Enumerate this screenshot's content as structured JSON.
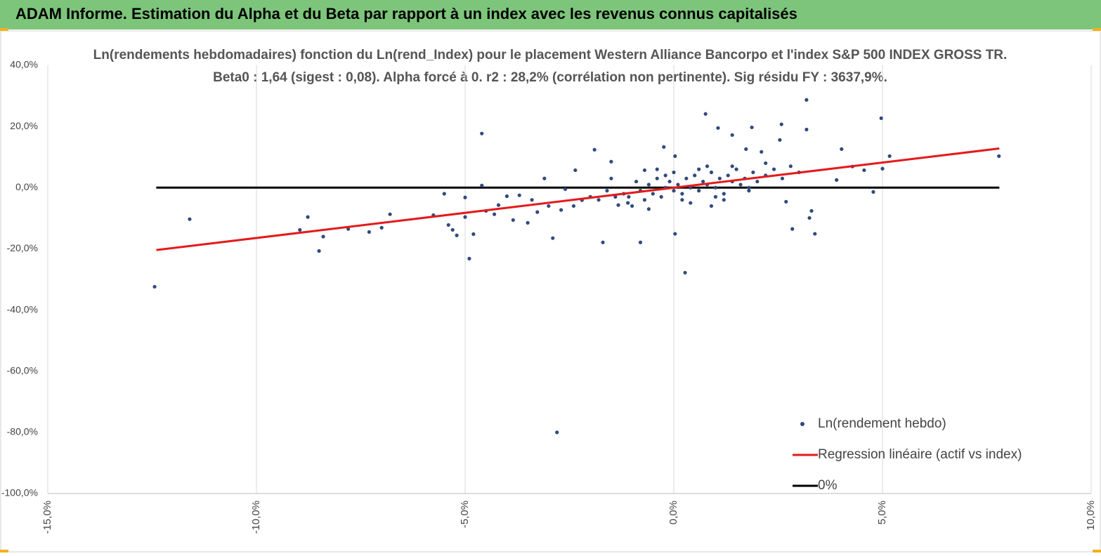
{
  "page_title": "ADAM Informe. Estimation du Alpha et du Beta par rapport à un index avec les revenus connus capitalisés",
  "chart_data": {
    "type": "scatter",
    "title": "Ln(rendements hebdomadaires) fonction du Ln(rend_Index) pour le placement Western Alliance Bancorpo et l'index S&P 500 INDEX GROSS TR.",
    "subtitle": "Beta0 : 1,64 (sigest : 0,08). Alpha forcé à 0. r2 : 28,2% (corrélation non pertinente). Sig résidu FY : 3637,9%.",
    "xlim": [
      -15,
      10
    ],
    "xticks": [
      {
        "value": -15,
        "label": "-15,0%"
      },
      {
        "value": -10,
        "label": "-10,0%"
      },
      {
        "value": -5,
        "label": "-5,0%"
      },
      {
        "value": 0,
        "label": "0,0%"
      },
      {
        "value": 5,
        "label": "5,0%"
      },
      {
        "value": 10,
        "label": "10,0%"
      }
    ],
    "ylim": [
      -100,
      40
    ],
    "yticks": [
      {
        "value": 40,
        "label": "40,0%"
      },
      {
        "value": 20,
        "label": "20,0%"
      },
      {
        "value": 0,
        "label": "0,0%"
      },
      {
        "value": -20,
        "label": "-20,0%"
      },
      {
        "value": -40,
        "label": "-40,0%"
      },
      {
        "value": -60,
        "label": "-60,0%"
      },
      {
        "value": -80,
        "label": "-80,0%"
      },
      {
        "value": -100,
        "label": "-100,0%"
      }
    ],
    "grid": "x",
    "legend": "bottom-right",
    "series": [
      {
        "name": "Ln(rendement hebdo)",
        "type": "scatter",
        "color": "#2f4b7c",
        "x": [
          -12.44,
          -11.6,
          -8.96,
          -8.77,
          -8.5,
          -8.4,
          -7.8,
          -7.3,
          -7.0,
          -6.8,
          -5.76,
          -5.5,
          -5.4,
          -5.3,
          -5.2,
          -5.0,
          -5.0,
          -4.9,
          -4.8,
          -4.6,
          -4.6,
          -4.5,
          -4.3,
          -4.2,
          -4.0,
          -3.85,
          -3.7,
          -3.5,
          -3.27,
          -3.1,
          -2.9,
          -2.8,
          -2.7,
          -2.6,
          -2.36,
          -2.2,
          -1.9,
          -1.7,
          -1.5,
          -1.33,
          -1.08,
          -0.8,
          -0.7,
          -0.24,
          0.03,
          0.03,
          0.27,
          0.76,
          1.06,
          1.4,
          1.87,
          1.73,
          2.58,
          2.54,
          2.1,
          2.84,
          2.69,
          3.18,
          3.18,
          3.3,
          3.38,
          3.25,
          4.02,
          3.9,
          4.28,
          4.78,
          4.97,
          5.17,
          7.79,
          4.56,
          5.0,
          -1.8,
          -1.6,
          -1.4,
          -1.2,
          -1.0,
          -0.9,
          -0.8,
          -0.7,
          -0.6,
          -0.5,
          -0.4,
          -0.3,
          -0.2,
          -0.1,
          0,
          0.1,
          0.2,
          0.3,
          0.4,
          0.5,
          0.6,
          0.7,
          0.8,
          0.9,
          1.0,
          1.1,
          1.2,
          1.3,
          1.4,
          1.5,
          1.6,
          1.7,
          1.8,
          1.9,
          2.0,
          2.2,
          2.4,
          2.6,
          2.8,
          3.0,
          -1.5,
          -1.1,
          -0.6,
          -0.2,
          0.2,
          0.6,
          1.0,
          1.4,
          1.8,
          2.2,
          -2.4,
          -2.0,
          -3.0,
          -3.4,
          0.4,
          0.8,
          1.2,
          -0.4,
          0.0,
          0.9
        ],
        "values": [
          -32.4,
          -10.3,
          -13.8,
          -9.6,
          -20.7,
          -16,
          -13.5,
          -14.5,
          -13.1,
          -8.7,
          -9,
          -2,
          -12.2,
          -13.8,
          -15.6,
          -9.6,
          -3.2,
          -23.2,
          -15.2,
          17.7,
          0.7,
          -7.6,
          -8.7,
          -5.7,
          -2.8,
          -10.6,
          -2.5,
          -11.5,
          -8,
          3,
          -16.5,
          -80,
          -7.3,
          -0.5,
          5.7,
          -4.1,
          12.4,
          -17.9,
          8.5,
          -5.7,
          -3,
          -17.9,
          5.7,
          13.3,
          10.3,
          -15.1,
          -27.8,
          24.1,
          19.5,
          17.2,
          19.7,
          12.6,
          20.7,
          15.6,
          11.7,
          -13.5,
          -4.6,
          28.7,
          19,
          -7.6,
          -15.1,
          -9.9,
          12.6,
          2.5,
          6.9,
          -1.4,
          22.7,
          10.3,
          10.3,
          5.7,
          6.2,
          -4,
          -1,
          -3,
          -2,
          -6,
          2,
          -1,
          -4,
          1,
          -2,
          3,
          -3,
          0,
          2,
          -1,
          1,
          -2,
          3,
          0,
          4,
          -1,
          2,
          1,
          5,
          0,
          3,
          -2,
          4,
          2,
          6,
          1,
          3,
          0,
          5,
          2,
          4,
          6,
          3,
          7,
          5,
          3,
          -5,
          -7,
          4,
          -4,
          6,
          -3,
          7,
          -1,
          8,
          -6,
          -3,
          -6,
          -4,
          -5,
          7,
          -4,
          6,
          5,
          -6
        ]
      },
      {
        "name": "Regression linéaire (actif vs index)",
        "type": "line",
        "color": "#e41a1c",
        "x": [
          -12.4,
          7.8
        ],
        "values": [
          -20.4,
          12.8
        ]
      },
      {
        "name": "0%",
        "type": "line",
        "color": "#000000",
        "x": [
          -12.4,
          7.8
        ],
        "values": [
          0,
          0
        ]
      }
    ]
  }
}
